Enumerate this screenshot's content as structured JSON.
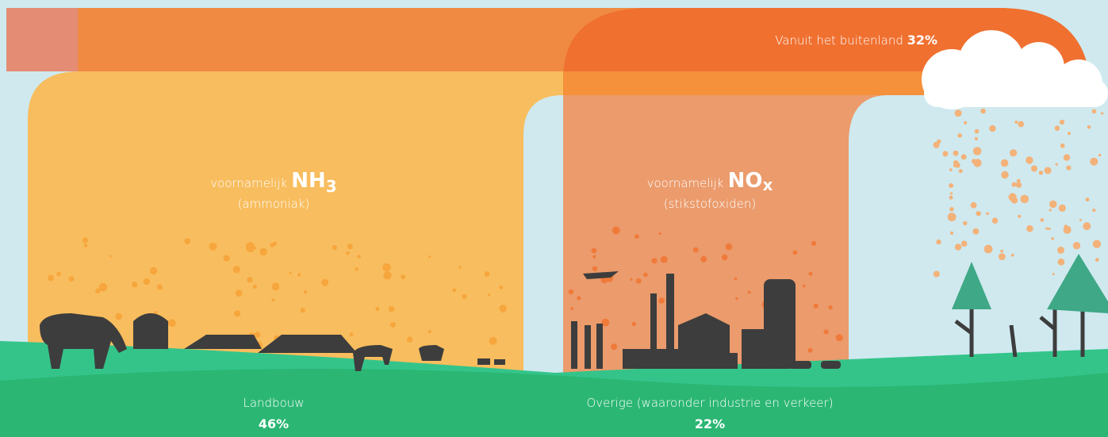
{
  "foreign": {
    "label": "Vanuit het buitenland",
    "share": "32%"
  },
  "agriculture": {
    "intro": "voornamelijk",
    "compound": "NH",
    "subscript": "3",
    "name": "(ammoniak)",
    "label": "Landbouw",
    "share": "46%"
  },
  "other": {
    "intro": "voornamelijk",
    "compound": "NO",
    "subscript": "x",
    "name": "(stikstofoxiden)",
    "label": "Overige (waaronder industrie en verkeer)",
    "share": "22%"
  }
}
